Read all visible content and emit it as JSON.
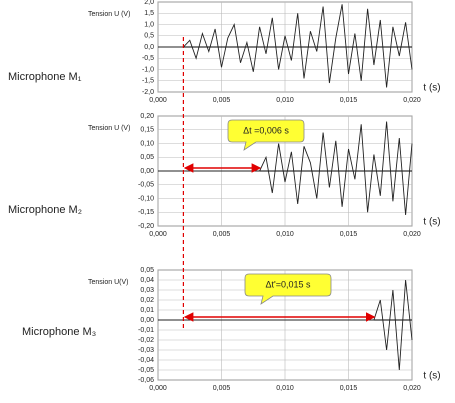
{
  "chart_data": [
    {
      "type": "line",
      "label": "Microphone M₁",
      "ylabel": "Tension U (V)",
      "xlabel": "t (s)",
      "grid": true,
      "xlim": [
        0,
        0.02
      ],
      "xticks": [
        {
          "value": 0,
          "label": "0,000"
        },
        {
          "value": 0.005,
          "label": "0,005"
        },
        {
          "value": 0.01,
          "label": "0,010"
        },
        {
          "value": 0.015,
          "label": "0,015"
        },
        {
          "value": 0.02,
          "label": "0,020"
        }
      ],
      "ylim": [
        -2,
        2
      ],
      "yticks": [
        {
          "value": 2,
          "label": "2,0"
        },
        {
          "value": 1.5,
          "label": "1,5"
        },
        {
          "value": 1,
          "label": "1,0"
        },
        {
          "value": 0.5,
          "label": "0,5"
        },
        {
          "value": 0,
          "label": "0,0"
        },
        {
          "value": -0.5,
          "label": "-0,5"
        },
        {
          "value": -1,
          "label": "-1,0"
        },
        {
          "value": -1.5,
          "label": "-1,5"
        },
        {
          "value": -2,
          "label": "-2,0"
        }
      ],
      "x": [
        0,
        0.0005,
        0.001,
        0.0015,
        0.002,
        0.0025,
        0.003,
        0.0035,
        0.004,
        0.0045,
        0.005,
        0.0055,
        0.006,
        0.0065,
        0.007,
        0.0075,
        0.008,
        0.0085,
        0.009,
        0.0095,
        0.01,
        0.0105,
        0.011,
        0.0115,
        0.012,
        0.0125,
        0.013,
        0.0135,
        0.014,
        0.0145,
        0.015,
        0.0155,
        0.016,
        0.0165,
        0.017,
        0.0175,
        0.018,
        0.0185,
        0.019,
        0.0195,
        0.02
      ],
      "series": [
        {
          "color": "#222222",
          "values": [
            0,
            0,
            0,
            0,
            0,
            0.3,
            -0.5,
            0.6,
            -0.2,
            0.8,
            -0.9,
            0.4,
            1.0,
            -0.7,
            0.2,
            -1.1,
            0.9,
            -0.3,
            1.3,
            -1.0,
            0.5,
            -0.6,
            1.5,
            -1.4,
            0.7,
            -0.2,
            1.8,
            -1.6,
            0.4,
            1.9,
            -1.2,
            0.6,
            -1.5,
            1.7,
            -0.8,
            1.2,
            -1.8,
            0.9,
            -0.4,
            1.1,
            -1.0
          ]
        }
      ]
    },
    {
      "type": "line",
      "label": "Microphone M₂",
      "ylabel": "Tension U (V)",
      "xlabel": "t (s)",
      "grid": true,
      "annotation": "Δt =0,006 s",
      "xlim": [
        0,
        0.02
      ],
      "xticks": [
        {
          "value": 0,
          "label": "0,000"
        },
        {
          "value": 0.005,
          "label": "0,005"
        },
        {
          "value": 0.01,
          "label": "0,010"
        },
        {
          "value": 0.015,
          "label": "0,015"
        },
        {
          "value": 0.02,
          "label": "0,020"
        }
      ],
      "ylim": [
        -0.2,
        0.2
      ],
      "yticks": [
        {
          "value": 0.2,
          "label": "0,20"
        },
        {
          "value": 0.15,
          "label": "0,15"
        },
        {
          "value": 0.1,
          "label": "0,10"
        },
        {
          "value": 0.05,
          "label": "0,05"
        },
        {
          "value": 0,
          "label": "0,00"
        },
        {
          "value": -0.05,
          "label": "-0,05"
        },
        {
          "value": -0.1,
          "label": "-0,10"
        },
        {
          "value": -0.15,
          "label": "-0,15"
        },
        {
          "value": -0.2,
          "label": "-0,20"
        }
      ],
      "x": [
        0,
        0.0005,
        0.001,
        0.0015,
        0.002,
        0.0025,
        0.003,
        0.0035,
        0.004,
        0.0045,
        0.005,
        0.0055,
        0.006,
        0.0065,
        0.007,
        0.0075,
        0.008,
        0.0085,
        0.009,
        0.0095,
        0.01,
        0.0105,
        0.011,
        0.0115,
        0.012,
        0.0125,
        0.013,
        0.0135,
        0.014,
        0.0145,
        0.015,
        0.0155,
        0.016,
        0.0165,
        0.017,
        0.0175,
        0.018,
        0.0185,
        0.019,
        0.0195,
        0.02
      ],
      "series": [
        {
          "color": "#222222",
          "values": [
            0,
            0,
            0,
            0,
            0,
            0,
            0,
            0,
            0,
            0,
            0,
            0,
            0,
            0,
            0,
            0,
            0,
            0.05,
            -0.08,
            0.1,
            -0.04,
            0.07,
            -0.12,
            0.09,
            0.03,
            -0.1,
            0.14,
            -0.06,
            0.11,
            -0.13,
            0.08,
            -0.03,
            0.17,
            -0.15,
            0.06,
            -0.09,
            0.18,
            -0.11,
            0.12,
            -0.16,
            0.1
          ]
        }
      ]
    },
    {
      "type": "line",
      "label": "Microphone M₃",
      "ylabel": "Tension U(V)",
      "xlabel": "t (s)",
      "grid": true,
      "annotation": "Δt'=0,015 s",
      "xlim": [
        0,
        0.02
      ],
      "xticks": [
        {
          "value": 0,
          "label": "0,000"
        },
        {
          "value": 0.005,
          "label": "0,005"
        },
        {
          "value": 0.01,
          "label": "0,010"
        },
        {
          "value": 0.015,
          "label": "0,015"
        },
        {
          "value": 0.02,
          "label": "0,020"
        }
      ],
      "ylim": [
        -0.06,
        0.05
      ],
      "yticks": [
        {
          "value": 0.05,
          "label": "0,05"
        },
        {
          "value": 0.04,
          "label": "0,04"
        },
        {
          "value": 0.03,
          "label": "0,03"
        },
        {
          "value": 0.02,
          "label": "0,02"
        },
        {
          "value": 0.01,
          "label": "0,01"
        },
        {
          "value": 0,
          "label": "0,00"
        },
        {
          "value": -0.01,
          "label": "-0,01"
        },
        {
          "value": -0.02,
          "label": "-0,02"
        },
        {
          "value": -0.03,
          "label": "-0,03"
        },
        {
          "value": -0.04,
          "label": "-0,04"
        },
        {
          "value": -0.05,
          "label": "-0,05"
        },
        {
          "value": -0.06,
          "label": "-0,06"
        }
      ],
      "x": [
        0,
        0.0005,
        0.001,
        0.0015,
        0.002,
        0.0025,
        0.003,
        0.0035,
        0.004,
        0.0045,
        0.005,
        0.0055,
        0.006,
        0.0065,
        0.007,
        0.0075,
        0.008,
        0.0085,
        0.009,
        0.0095,
        0.01,
        0.0105,
        0.011,
        0.0115,
        0.012,
        0.0125,
        0.013,
        0.0135,
        0.014,
        0.0145,
        0.015,
        0.0155,
        0.016,
        0.0165,
        0.017,
        0.0175,
        0.018,
        0.0185,
        0.019,
        0.0195,
        0.02
      ],
      "series": [
        {
          "color": "#222222",
          "values": [
            0,
            0,
            0,
            0,
            0,
            0,
            0,
            0,
            0,
            0,
            0,
            0,
            0,
            0,
            0,
            0,
            0,
            0,
            0,
            0,
            0,
            0,
            0,
            0,
            0,
            0,
            0,
            0,
            0,
            0,
            0,
            0,
            0,
            0,
            0,
            0.02,
            -0.03,
            0.03,
            -0.05,
            0.04,
            -0.02
          ]
        }
      ]
    }
  ]
}
